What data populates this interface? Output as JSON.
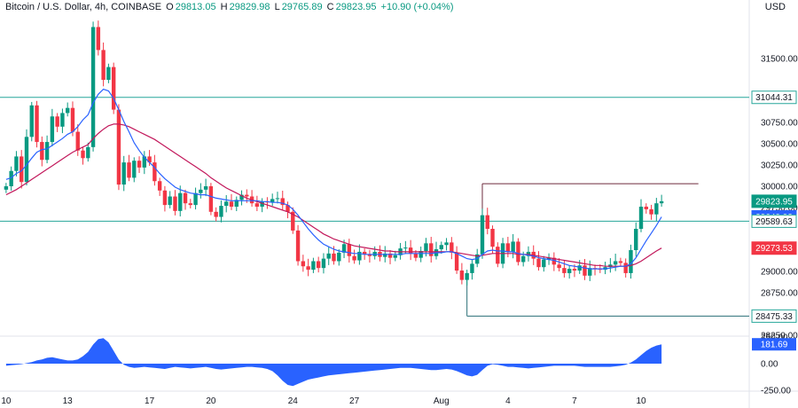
{
  "header": {
    "symbol": "Bitcoin / U.S. Dollar, 4h, COINBASE",
    "o_label": "O",
    "o": "29813.05",
    "h_label": "H",
    "h": "29829.98",
    "l_label": "L",
    "l": "29765.89",
    "c_label": "C",
    "c": "29823.95",
    "change": "+10.90 (+0.04%)",
    "currency": "USD"
  },
  "colors": {
    "up": "#089981",
    "down": "#f23645",
    "ma_fast": "#2962ff",
    "ma_slow": "#c2185b",
    "hline": "#26a69a",
    "osc": "#2962ff"
  },
  "chart_data": {
    "type": "candlestick",
    "price_axis": {
      "ylim": [
        28250,
        32000
      ],
      "ticks": [
        "31500.00",
        "30750.00",
        "30500.00",
        "30250.00",
        "30000.00",
        "29750.00",
        "29000.00",
        "28750.00",
        "28250.00"
      ]
    },
    "time_axis": {
      "ticks": [
        "10",
        "13",
        "17",
        "20",
        "24",
        "27",
        "Aug",
        "4",
        "7",
        "10"
      ]
    },
    "price_labels": [
      {
        "text": "31044.31",
        "value": 31044.31,
        "style": "outline"
      },
      {
        "text": "29823.95",
        "value": 29823.95,
        "style": "up"
      },
      {
        "text": "29640.92",
        "value": 29640.92,
        "style": "fast"
      },
      {
        "text": "29589.63",
        "value": 29589.63,
        "style": "outline"
      },
      {
        "text": "29273.53",
        "value": 29273.53,
        "style": "down"
      },
      {
        "text": "28475.33",
        "value": 28475.33,
        "style": "outline"
      }
    ],
    "horizontal_lines": [
      31044.31,
      29589.63
    ],
    "resistance": {
      "value": 30030,
      "from_index": 93,
      "to_index": 130
    },
    "support": {
      "value": 28475.33,
      "from_index": 90,
      "to_index": 130
    },
    "series_close": [
      30000,
      30180,
      30350,
      30050,
      30580,
      30950,
      30520,
      30310,
      30520,
      30820,
      30700,
      30860,
      30920,
      30640,
      30420,
      30330,
      30460,
      31870,
      31600,
      31250,
      31400,
      30900,
      30020,
      30280,
      30100,
      30300,
      30220,
      30350,
      30280,
      30060,
      29950,
      29780,
      29880,
      29710,
      29920,
      29800,
      29780,
      29920,
      29960,
      30000,
      29700,
      29640,
      29770,
      29820,
      29760,
      29840,
      29900,
      29880,
      29800,
      29760,
      29820,
      29810,
      29850,
      29860,
      29780,
      29700,
      29480,
      29120,
      29060,
      29020,
      29120,
      29040,
      29150,
      29210,
      29120,
      29220,
      29320,
      29180,
      29130,
      29230,
      29200,
      29180,
      29230,
      29170,
      29210,
      29160,
      29190,
      29270,
      29280,
      29210,
      29160,
      29240,
      29330,
      29180,
      29260,
      29310,
      29340,
      29220,
      29010,
      28900,
      28980,
      29090,
      29200,
      29660,
      29500,
      29290,
      29090,
      29330,
      29230,
      29350,
      29110,
      29180,
      29230,
      29150,
      29050,
      29140,
      29160,
      29080,
      29040,
      28980,
      29030,
      29010,
      29070,
      28950,
      29040,
      29030,
      29020,
      29050,
      29080,
      29120,
      29100,
      28980,
      29250,
      29500,
      29760,
      29730,
      29670,
      29800,
      29823.95
    ],
    "ma_fast": [
      30080,
      30100,
      30150,
      30180,
      30250,
      30330,
      30400,
      30430,
      30440,
      30480,
      30520,
      30560,
      30610,
      30640,
      30700,
      30780,
      30840,
      30980,
      31080,
      31140,
      31120,
      31030,
      30900,
      30760,
      30640,
      30510,
      30420,
      30340,
      30280,
      30220,
      30150,
      30090,
      30040,
      29990,
      29960,
      29940,
      29920,
      29910,
      29900,
      29900,
      29880,
      29860,
      29850,
      29840,
      29830,
      29830,
      29830,
      29830,
      29830,
      29830,
      29820,
      29820,
      29810,
      29810,
      29800,
      29780,
      29730,
      29660,
      29580,
      29500,
      29430,
      29370,
      29320,
      29290,
      29260,
      29240,
      29230,
      29220,
      29210,
      29210,
      29200,
      29200,
      29200,
      29200,
      29200,
      29200,
      29200,
      29200,
      29210,
      29210,
      29210,
      29210,
      29210,
      29210,
      29220,
      29220,
      29230,
      29230,
      29210,
      29180,
      29150,
      29140,
      29150,
      29200,
      29240,
      29250,
      29240,
      29240,
      29230,
      29230,
      29210,
      29200,
      29190,
      29180,
      29160,
      29150,
      29140,
      29130,
      29110,
      29090,
      29070,
      29060,
      29050,
      29040,
      29030,
      29030,
      29030,
      29030,
      29040,
      29050,
      29060,
      29060,
      29090,
      29160,
      29260,
      29360,
      29450,
      29540,
      29640.92
    ],
    "ma_slow": [
      29900,
      29930,
      29960,
      30000,
      30040,
      30080,
      30120,
      30160,
      30200,
      30240,
      30280,
      30320,
      30360,
      30400,
      30430,
      30460,
      30490,
      30560,
      30620,
      30670,
      30710,
      30730,
      30730,
      30720,
      30700,
      30670,
      30640,
      30610,
      30580,
      30550,
      30510,
      30470,
      30430,
      30390,
      30350,
      30310,
      30270,
      30230,
      30190,
      30150,
      30100,
      30060,
      30020,
      29980,
      29950,
      29920,
      29890,
      29860,
      29840,
      29820,
      29800,
      29780,
      29760,
      29740,
      29720,
      29700,
      29670,
      29640,
      29600,
      29560,
      29520,
      29480,
      29440,
      29410,
      29380,
      29360,
      29340,
      29320,
      29300,
      29290,
      29280,
      29270,
      29260,
      29250,
      29240,
      29240,
      29230,
      29230,
      29230,
      29230,
      29230,
      29230,
      29230,
      29230,
      29230,
      29230,
      29230,
      29230,
      29220,
      29210,
      29200,
      29190,
      29180,
      29190,
      29200,
      29210,
      29210,
      29210,
      29210,
      29210,
      29200,
      29200,
      29200,
      29190,
      29180,
      29170,
      29160,
      29150,
      29140,
      29130,
      29120,
      29110,
      29100,
      29090,
      29080,
      29070,
      29070,
      29060,
      29060,
      29060,
      29060,
      29060,
      29070,
      29090,
      29120,
      29160,
      29200,
      29240,
      29273.53
    ],
    "oscillator": {
      "ticks": [
        "250.00",
        "0.00",
        "-250.00"
      ],
      "ylim": [
        -250,
        250
      ],
      "last_label": "181.69",
      "values": [
        -20,
        -15,
        -10,
        -5,
        5,
        15,
        30,
        40,
        55,
        60,
        50,
        40,
        30,
        30,
        40,
        70,
        110,
        180,
        230,
        240,
        200,
        120,
        40,
        -10,
        -30,
        -40,
        -35,
        -30,
        -35,
        -40,
        -45,
        -50,
        -40,
        -30,
        -35,
        -40,
        -45,
        -40,
        -35,
        -30,
        -40,
        -50,
        -55,
        -50,
        -45,
        -40,
        -35,
        -30,
        -30,
        -35,
        -40,
        -50,
        -70,
        -110,
        -160,
        -200,
        -210,
        -190,
        -170,
        -150,
        -140,
        -130,
        -120,
        -110,
        -105,
        -100,
        -95,
        -90,
        -85,
        -80,
        -75,
        -70,
        -65,
        -60,
        -55,
        -50,
        -45,
        -40,
        -40,
        -40,
        -45,
        -50,
        -55,
        -60,
        -60,
        -55,
        -50,
        -55,
        -70,
        -90,
        -110,
        -120,
        -105,
        -60,
        -20,
        -5,
        -10,
        -20,
        -30,
        -30,
        -35,
        -40,
        -45,
        -40,
        -35,
        -30,
        -25,
        -20,
        -20,
        -20,
        -20,
        -20,
        -25,
        -30,
        -30,
        -30,
        -30,
        -30,
        -30,
        -25,
        -20,
        -10,
        10,
        40,
        80,
        120,
        150,
        170,
        181.69
      ]
    }
  }
}
